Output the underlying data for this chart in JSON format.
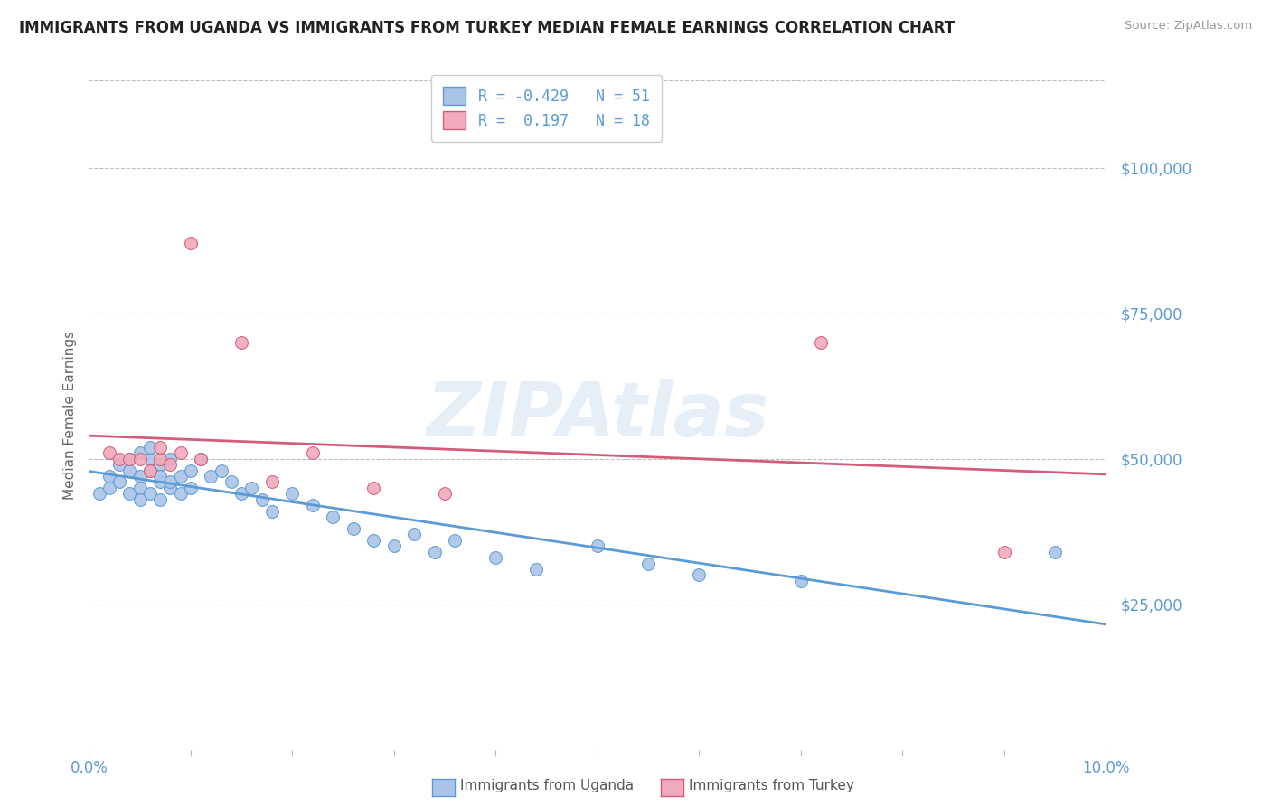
{
  "title": "IMMIGRANTS FROM UGANDA VS IMMIGRANTS FROM TURKEY MEDIAN FEMALE EARNINGS CORRELATION CHART",
  "source": "Source: ZipAtlas.com",
  "ylabel": "Median Female Earnings",
  "xlim": [
    0.0,
    0.1
  ],
  "ylim": [
    0,
    115000
  ],
  "yticks": [
    0,
    25000,
    50000,
    75000,
    100000
  ],
  "ytick_labels": [
    "",
    "$25,000",
    "$50,000",
    "$75,000",
    "$100,000"
  ],
  "xticks": [
    0.0,
    0.01,
    0.02,
    0.03,
    0.04,
    0.05,
    0.06,
    0.07,
    0.08,
    0.09,
    0.1
  ],
  "xtick_labels_show": [
    "0.0%",
    "",
    "",
    "",
    "",
    "",
    "",
    "",
    "",
    "",
    "10.0%"
  ],
  "uganda_color": "#aac4e8",
  "turkey_color": "#f0aabb",
  "uganda_line_color": "#5b9bd5",
  "turkey_line_color": "#d45c7a",
  "legend_line1": "R = -0.429   N = 51",
  "legend_line2": "R =  0.197   N = 18",
  "label_uganda": "Immigrants from Uganda",
  "label_turkey": "Immigrants from Turkey",
  "watermark": "ZIPAtlas",
  "background_color": "#ffffff",
  "grid_color": "#bbbbbb",
  "title_color": "#222222",
  "tick_label_color": "#5b9bd5",
  "uganda_x": [
    0.001,
    0.002,
    0.002,
    0.003,
    0.003,
    0.004,
    0.004,
    0.004,
    0.005,
    0.005,
    0.005,
    0.005,
    0.006,
    0.006,
    0.006,
    0.006,
    0.007,
    0.007,
    0.007,
    0.007,
    0.008,
    0.008,
    0.008,
    0.009,
    0.009,
    0.01,
    0.01,
    0.011,
    0.012,
    0.013,
    0.014,
    0.015,
    0.016,
    0.017,
    0.018,
    0.02,
    0.022,
    0.024,
    0.026,
    0.028,
    0.03,
    0.032,
    0.034,
    0.036,
    0.04,
    0.044,
    0.05,
    0.055,
    0.06,
    0.07,
    0.095
  ],
  "uganda_y": [
    44000,
    45000,
    47000,
    46000,
    49000,
    48000,
    50000,
    44000,
    47000,
    51000,
    45000,
    43000,
    50000,
    48000,
    52000,
    44000,
    46000,
    49000,
    43000,
    47000,
    45000,
    50000,
    46000,
    47000,
    44000,
    48000,
    45000,
    50000,
    47000,
    48000,
    46000,
    44000,
    45000,
    43000,
    41000,
    44000,
    42000,
    40000,
    38000,
    36000,
    35000,
    37000,
    34000,
    36000,
    33000,
    31000,
    35000,
    32000,
    30000,
    29000,
    34000
  ],
  "turkey_x": [
    0.002,
    0.003,
    0.004,
    0.005,
    0.006,
    0.007,
    0.007,
    0.008,
    0.009,
    0.01,
    0.011,
    0.015,
    0.018,
    0.022,
    0.028,
    0.035,
    0.072,
    0.09
  ],
  "turkey_y": [
    51000,
    50000,
    50000,
    50000,
    48000,
    50000,
    52000,
    49000,
    51000,
    87000,
    50000,
    70000,
    46000,
    51000,
    45000,
    44000,
    70000,
    34000
  ]
}
